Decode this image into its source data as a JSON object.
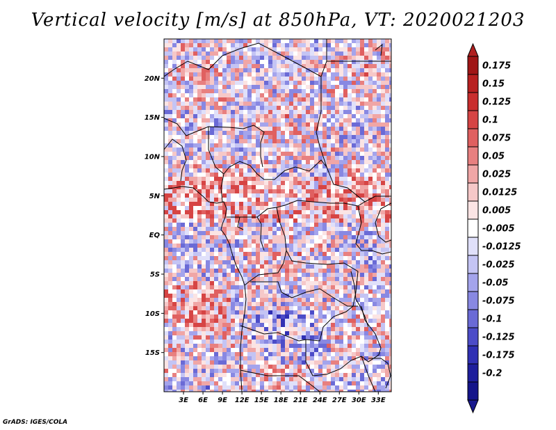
{
  "title": "Vertical velocity [m/s] at 850hPa, VT: 2020021203",
  "footer": "GrADS: IGES/COLA",
  "map": {
    "lon_range": [
      0,
      35
    ],
    "lat_range": [
      -20,
      25
    ],
    "lat_ticks": [
      "20N",
      "15N",
      "10N",
      "5N",
      "EQ",
      "5S",
      "10S",
      "15S"
    ],
    "lon_ticks": [
      "3E",
      "6E",
      "9E",
      "12E",
      "15E",
      "18E",
      "21E",
      "24E",
      "27E",
      "30E",
      "33E"
    ]
  },
  "colorbar": {
    "labels": [
      "0.175",
      "0.15",
      "0.125",
      "0.1",
      "0.075",
      "0.05",
      "0.025",
      "0.0125",
      "0.005",
      "-0.005",
      "-0.0125",
      "-0.025",
      "-0.05",
      "-0.075",
      "-0.1",
      "-0.125",
      "-0.175",
      "-0.2"
    ],
    "colors": [
      "#a01616",
      "#b82020",
      "#c92e2e",
      "#d64444",
      "#e06060",
      "#e88080",
      "#f0a6a6",
      "#f6c8c8",
      "#fbe4e4",
      "#ffffff",
      "#e0e0fa",
      "#c4c4f4",
      "#a4a4ec",
      "#8888e2",
      "#6a6ad6",
      "#4c4cc8",
      "#3030b4",
      "#1e1e9c",
      "#14148a"
    ],
    "top_color": "#b02020",
    "bottom_color": "#1a1a8e"
  }
}
